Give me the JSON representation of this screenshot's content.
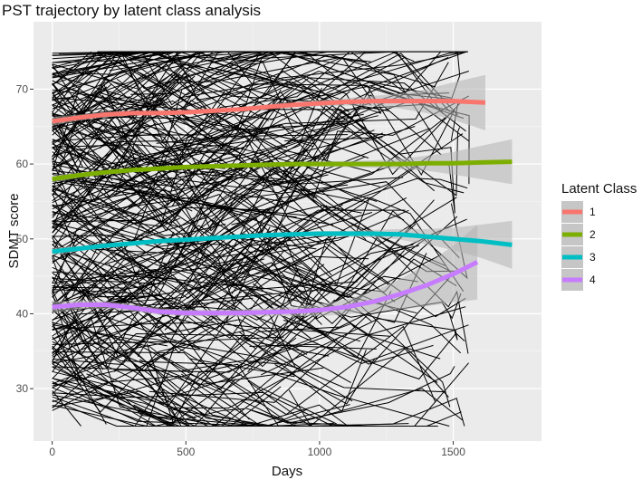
{
  "chart_data": {
    "type": "line",
    "title": "PST trajectory by latent class analysis",
    "xlabel": "Days",
    "ylabel": "SDMT score",
    "xlim": [
      -70,
      1830
    ],
    "ylim": [
      23,
      79
    ],
    "xticks": [
      0,
      500,
      1000,
      1500
    ],
    "yticks": [
      30,
      40,
      50,
      60,
      70
    ],
    "grid": true,
    "legend": {
      "title": "Latent Class",
      "placement": "right",
      "entries": [
        "1",
        "2",
        "3",
        "4"
      ]
    },
    "colors": {
      "panel_background": "#ebebeb",
      "grid_major": "#ffffff",
      "spaghetti_lines": "#000000",
      "ribbon": "#b3b3b3"
    },
    "series": [
      {
        "name": "1",
        "color": "#f8766d",
        "x": [
          0,
          100,
          200,
          300,
          400,
          500,
          600,
          700,
          800,
          900,
          1000,
          1100,
          1200,
          1300,
          1400,
          1500,
          1620
        ],
        "y": [
          65.7,
          66.2,
          66.6,
          66.8,
          66.8,
          66.9,
          67.1,
          67.3,
          67.6,
          67.9,
          68.1,
          68.3,
          68.4,
          68.4,
          68.4,
          68.4,
          68.2
        ],
        "ci_halfwidth": [
          0.6,
          0.4,
          0.35,
          0.3,
          0.3,
          0.3,
          0.3,
          0.3,
          0.3,
          0.35,
          0.4,
          0.5,
          0.7,
          1.0,
          1.6,
          2.5,
          3.7
        ]
      },
      {
        "name": "2",
        "color": "#7cae00",
        "x": [
          0,
          100,
          200,
          300,
          400,
          500,
          600,
          700,
          800,
          900,
          1000,
          1100,
          1200,
          1300,
          1400,
          1500,
          1600,
          1720
        ],
        "y": [
          58.0,
          58.5,
          58.9,
          59.2,
          59.4,
          59.6,
          59.7,
          59.8,
          59.9,
          60.0,
          60.0,
          60.0,
          60.0,
          60.0,
          60.1,
          60.1,
          60.2,
          60.3
        ],
        "ci_halfwidth": [
          0.5,
          0.35,
          0.3,
          0.25,
          0.25,
          0.25,
          0.25,
          0.25,
          0.3,
          0.3,
          0.35,
          0.4,
          0.5,
          0.7,
          1.0,
          1.5,
          2.2,
          3.0
        ]
      },
      {
        "name": "3",
        "color": "#00bfc4",
        "x": [
          0,
          100,
          200,
          300,
          400,
          500,
          600,
          700,
          800,
          900,
          1000,
          1100,
          1200,
          1300,
          1400,
          1500,
          1600,
          1720
        ],
        "y": [
          48.3,
          48.7,
          49.1,
          49.4,
          49.7,
          49.9,
          50.1,
          50.3,
          50.5,
          50.6,
          50.7,
          50.7,
          50.7,
          50.6,
          50.3,
          50.0,
          49.7,
          49.2
        ],
        "ci_halfwidth": [
          0.5,
          0.35,
          0.3,
          0.25,
          0.25,
          0.25,
          0.25,
          0.25,
          0.3,
          0.3,
          0.35,
          0.4,
          0.5,
          0.7,
          1.0,
          1.5,
          2.2,
          3.2
        ]
      },
      {
        "name": "4",
        "color": "#c77cff",
        "x": [
          0,
          100,
          200,
          300,
          400,
          500,
          600,
          700,
          800,
          900,
          1000,
          1100,
          1200,
          1300,
          1400,
          1500,
          1590
        ],
        "y": [
          40.9,
          41.2,
          41.2,
          40.8,
          40.3,
          40.1,
          40.1,
          40.1,
          40.2,
          40.3,
          40.5,
          40.9,
          41.6,
          42.6,
          43.8,
          45.3,
          46.9
        ],
        "ci_halfwidth": [
          0.8,
          0.55,
          0.5,
          0.45,
          0.45,
          0.45,
          0.45,
          0.5,
          0.55,
          0.65,
          0.8,
          1.0,
          1.4,
          2.0,
          2.8,
          3.8,
          5.0
        ]
      }
    ]
  }
}
